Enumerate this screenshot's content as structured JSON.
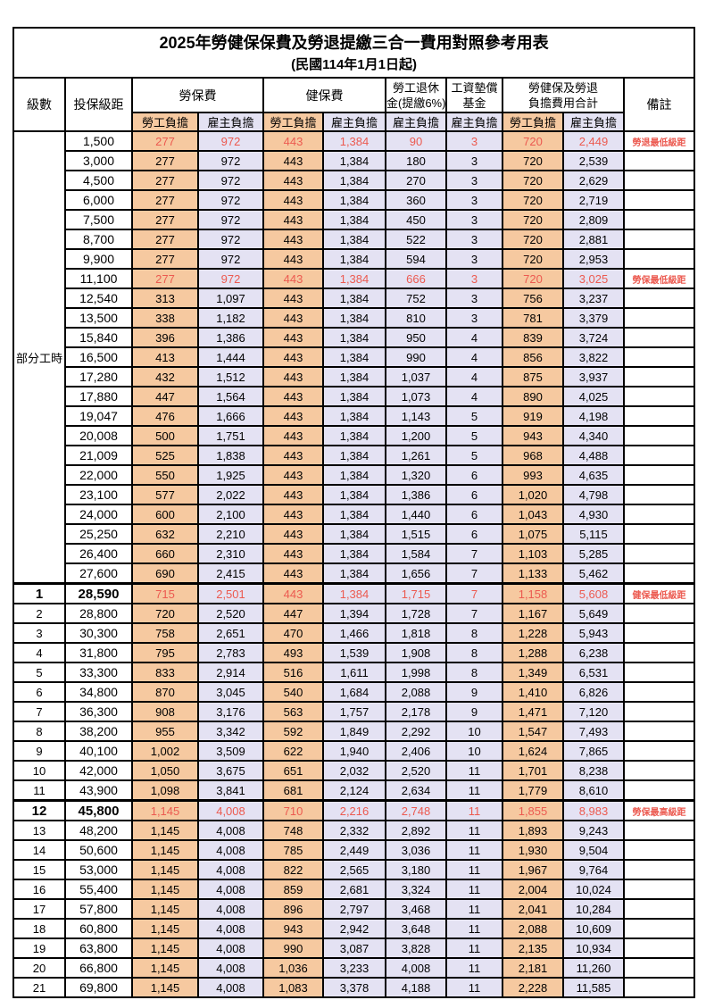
{
  "title": "2025年勞健保保費及勞退提繳三合一費用對照參考用表",
  "subtitle": "(民國114年1月1日起)",
  "colors": {
    "employee_col_bg": "#F6C9A0",
    "employer_col_bg": "#E4E2F3",
    "highlight_text": "#EC5A50",
    "border": "#000000"
  },
  "header": {
    "level": "級數",
    "bracket": "投保級距",
    "labor_ins": "勞保費",
    "health_ins": "健保費",
    "pension_line1": "勞工退休",
    "pension_line2": "金(提繳6%)",
    "wage_fund_line1": "工資墊償",
    "wage_fund_line2": "基金",
    "total_line1": "勞健保及勞退",
    "total_line2": "負擔費用合計",
    "employee": "勞工負擔",
    "employer": "雇主負擔",
    "remark": "備註"
  },
  "part_time_label": "部分工時",
  "rows": [
    {
      "group": "part",
      "level": "",
      "bracket": "1,500",
      "values": [
        "277",
        "972",
        "443",
        "1,384",
        "90",
        "3",
        "720",
        "2,449"
      ],
      "remark": "勞退最低級距",
      "red": true
    },
    {
      "group": "part",
      "level": "",
      "bracket": "3,000",
      "values": [
        "277",
        "972",
        "443",
        "1,384",
        "180",
        "3",
        "720",
        "2,539"
      ],
      "remark": ""
    },
    {
      "group": "part",
      "level": "",
      "bracket": "4,500",
      "values": [
        "277",
        "972",
        "443",
        "1,384",
        "270",
        "3",
        "720",
        "2,629"
      ],
      "remark": ""
    },
    {
      "group": "part",
      "level": "",
      "bracket": "6,000",
      "values": [
        "277",
        "972",
        "443",
        "1,384",
        "360",
        "3",
        "720",
        "2,719"
      ],
      "remark": ""
    },
    {
      "group": "part",
      "level": "",
      "bracket": "7,500",
      "values": [
        "277",
        "972",
        "443",
        "1,384",
        "450",
        "3",
        "720",
        "2,809"
      ],
      "remark": ""
    },
    {
      "group": "part",
      "level": "",
      "bracket": "8,700",
      "values": [
        "277",
        "972",
        "443",
        "1,384",
        "522",
        "3",
        "720",
        "2,881"
      ],
      "remark": ""
    },
    {
      "group": "part",
      "level": "",
      "bracket": "9,900",
      "values": [
        "277",
        "972",
        "443",
        "1,384",
        "594",
        "3",
        "720",
        "2,953"
      ],
      "remark": ""
    },
    {
      "group": "part",
      "level": "",
      "bracket": "11,100",
      "values": [
        "277",
        "972",
        "443",
        "1,384",
        "666",
        "3",
        "720",
        "3,025"
      ],
      "remark": "勞保最低級距",
      "red": true
    },
    {
      "group": "part",
      "level": "",
      "bracket": "12,540",
      "values": [
        "313",
        "1,097",
        "443",
        "1,384",
        "752",
        "3",
        "756",
        "3,237"
      ],
      "remark": ""
    },
    {
      "group": "part",
      "level": "",
      "bracket": "13,500",
      "values": [
        "338",
        "1,182",
        "443",
        "1,384",
        "810",
        "3",
        "781",
        "3,379"
      ],
      "remark": ""
    },
    {
      "group": "part",
      "level": "",
      "bracket": "15,840",
      "values": [
        "396",
        "1,386",
        "443",
        "1,384",
        "950",
        "4",
        "839",
        "3,724"
      ],
      "remark": ""
    },
    {
      "group": "part",
      "level": "",
      "bracket": "16,500",
      "values": [
        "413",
        "1,444",
        "443",
        "1,384",
        "990",
        "4",
        "856",
        "3,822"
      ],
      "remark": ""
    },
    {
      "group": "part",
      "level": "",
      "bracket": "17,280",
      "values": [
        "432",
        "1,512",
        "443",
        "1,384",
        "1,037",
        "4",
        "875",
        "3,937"
      ],
      "remark": ""
    },
    {
      "group": "part",
      "level": "",
      "bracket": "17,880",
      "values": [
        "447",
        "1,564",
        "443",
        "1,384",
        "1,073",
        "4",
        "890",
        "4,025"
      ],
      "remark": ""
    },
    {
      "group": "part",
      "level": "",
      "bracket": "19,047",
      "values": [
        "476",
        "1,666",
        "443",
        "1,384",
        "1,143",
        "5",
        "919",
        "4,198"
      ],
      "remark": ""
    },
    {
      "group": "part",
      "level": "",
      "bracket": "20,008",
      "values": [
        "500",
        "1,751",
        "443",
        "1,384",
        "1,200",
        "5",
        "943",
        "4,340"
      ],
      "remark": ""
    },
    {
      "group": "part",
      "level": "",
      "bracket": "21,009",
      "values": [
        "525",
        "1,838",
        "443",
        "1,384",
        "1,261",
        "5",
        "968",
        "4,488"
      ],
      "remark": ""
    },
    {
      "group": "part",
      "level": "",
      "bracket": "22,000",
      "values": [
        "550",
        "1,925",
        "443",
        "1,384",
        "1,320",
        "6",
        "993",
        "4,635"
      ],
      "remark": ""
    },
    {
      "group": "part",
      "level": "",
      "bracket": "23,100",
      "values": [
        "577",
        "2,022",
        "443",
        "1,384",
        "1,386",
        "6",
        "1,020",
        "4,798"
      ],
      "remark": ""
    },
    {
      "group": "part",
      "level": "",
      "bracket": "24,000",
      "values": [
        "600",
        "2,100",
        "443",
        "1,384",
        "1,440",
        "6",
        "1,043",
        "4,930"
      ],
      "remark": ""
    },
    {
      "group": "part",
      "level": "",
      "bracket": "25,250",
      "values": [
        "632",
        "2,210",
        "443",
        "1,384",
        "1,515",
        "6",
        "1,075",
        "5,115"
      ],
      "remark": ""
    },
    {
      "group": "part",
      "level": "",
      "bracket": "26,400",
      "values": [
        "660",
        "2,310",
        "443",
        "1,384",
        "1,584",
        "7",
        "1,103",
        "5,285"
      ],
      "remark": ""
    },
    {
      "group": "part",
      "level": "",
      "bracket": "27,600",
      "values": [
        "690",
        "2,415",
        "443",
        "1,384",
        "1,656",
        "7",
        "1,133",
        "5,462"
      ],
      "remark": ""
    },
    {
      "group": "level",
      "level": "1",
      "bracket": "28,590",
      "values": [
        "715",
        "2,501",
        "443",
        "1,384",
        "1,715",
        "7",
        "1,158",
        "5,608"
      ],
      "remark": "健保最低級距",
      "red": true,
      "thick": true,
      "bold": true
    },
    {
      "group": "level",
      "level": "2",
      "bracket": "28,800",
      "values": [
        "720",
        "2,520",
        "447",
        "1,394",
        "1,728",
        "7",
        "1,167",
        "5,649"
      ],
      "remark": ""
    },
    {
      "group": "level",
      "level": "3",
      "bracket": "30,300",
      "values": [
        "758",
        "2,651",
        "470",
        "1,466",
        "1,818",
        "8",
        "1,228",
        "5,943"
      ],
      "remark": ""
    },
    {
      "group": "level",
      "level": "4",
      "bracket": "31,800",
      "values": [
        "795",
        "2,783",
        "493",
        "1,539",
        "1,908",
        "8",
        "1,288",
        "6,238"
      ],
      "remark": ""
    },
    {
      "group": "level",
      "level": "5",
      "bracket": "33,300",
      "values": [
        "833",
        "2,914",
        "516",
        "1,611",
        "1,998",
        "8",
        "1,349",
        "6,531"
      ],
      "remark": ""
    },
    {
      "group": "level",
      "level": "6",
      "bracket": "34,800",
      "values": [
        "870",
        "3,045",
        "540",
        "1,684",
        "2,088",
        "9",
        "1,410",
        "6,826"
      ],
      "remark": ""
    },
    {
      "group": "level",
      "level": "7",
      "bracket": "36,300",
      "values": [
        "908",
        "3,176",
        "563",
        "1,757",
        "2,178",
        "9",
        "1,471",
        "7,120"
      ],
      "remark": ""
    },
    {
      "group": "level",
      "level": "8",
      "bracket": "38,200",
      "values": [
        "955",
        "3,342",
        "592",
        "1,849",
        "2,292",
        "10",
        "1,547",
        "7,493"
      ],
      "remark": ""
    },
    {
      "group": "level",
      "level": "9",
      "bracket": "40,100",
      "values": [
        "1,002",
        "3,509",
        "622",
        "1,940",
        "2,406",
        "10",
        "1,624",
        "7,865"
      ],
      "remark": ""
    },
    {
      "group": "level",
      "level": "10",
      "bracket": "42,000",
      "values": [
        "1,050",
        "3,675",
        "651",
        "2,032",
        "2,520",
        "11",
        "1,701",
        "8,238"
      ],
      "remark": ""
    },
    {
      "group": "level",
      "level": "11",
      "bracket": "43,900",
      "values": [
        "1,098",
        "3,841",
        "681",
        "2,124",
        "2,634",
        "11",
        "1,779",
        "8,610"
      ],
      "remark": ""
    },
    {
      "group": "level",
      "level": "12",
      "bracket": "45,800",
      "values": [
        "1,145",
        "4,008",
        "710",
        "2,216",
        "2,748",
        "11",
        "1,855",
        "8,983"
      ],
      "remark": "勞保最高級距",
      "red": true,
      "thick": true,
      "bold": true
    },
    {
      "group": "level",
      "level": "13",
      "bracket": "48,200",
      "values": [
        "1,145",
        "4,008",
        "748",
        "2,332",
        "2,892",
        "11",
        "1,893",
        "9,243"
      ],
      "remark": ""
    },
    {
      "group": "level",
      "level": "14",
      "bracket": "50,600",
      "values": [
        "1,145",
        "4,008",
        "785",
        "2,449",
        "3,036",
        "11",
        "1,930",
        "9,504"
      ],
      "remark": ""
    },
    {
      "group": "level",
      "level": "15",
      "bracket": "53,000",
      "values": [
        "1,145",
        "4,008",
        "822",
        "2,565",
        "3,180",
        "11",
        "1,967",
        "9,764"
      ],
      "remark": ""
    },
    {
      "group": "level",
      "level": "16",
      "bracket": "55,400",
      "values": [
        "1,145",
        "4,008",
        "859",
        "2,681",
        "3,324",
        "11",
        "2,004",
        "10,024"
      ],
      "remark": ""
    },
    {
      "group": "level",
      "level": "17",
      "bracket": "57,800",
      "values": [
        "1,145",
        "4,008",
        "896",
        "2,797",
        "3,468",
        "11",
        "2,041",
        "10,284"
      ],
      "remark": ""
    },
    {
      "group": "level",
      "level": "18",
      "bracket": "60,800",
      "values": [
        "1,145",
        "4,008",
        "943",
        "2,942",
        "3,648",
        "11",
        "2,088",
        "10,609"
      ],
      "remark": ""
    },
    {
      "group": "level",
      "level": "19",
      "bracket": "63,800",
      "values": [
        "1,145",
        "4,008",
        "990",
        "3,087",
        "3,828",
        "11",
        "2,135",
        "10,934"
      ],
      "remark": ""
    },
    {
      "group": "level",
      "level": "20",
      "bracket": "66,800",
      "values": [
        "1,145",
        "4,008",
        "1,036",
        "3,233",
        "4,008",
        "11",
        "2,181",
        "11,260"
      ],
      "remark": ""
    },
    {
      "group": "level",
      "level": "21",
      "bracket": "69,800",
      "values": [
        "1,145",
        "4,008",
        "1,083",
        "3,378",
        "4,188",
        "11",
        "2,228",
        "11,585"
      ],
      "remark": ""
    }
  ]
}
